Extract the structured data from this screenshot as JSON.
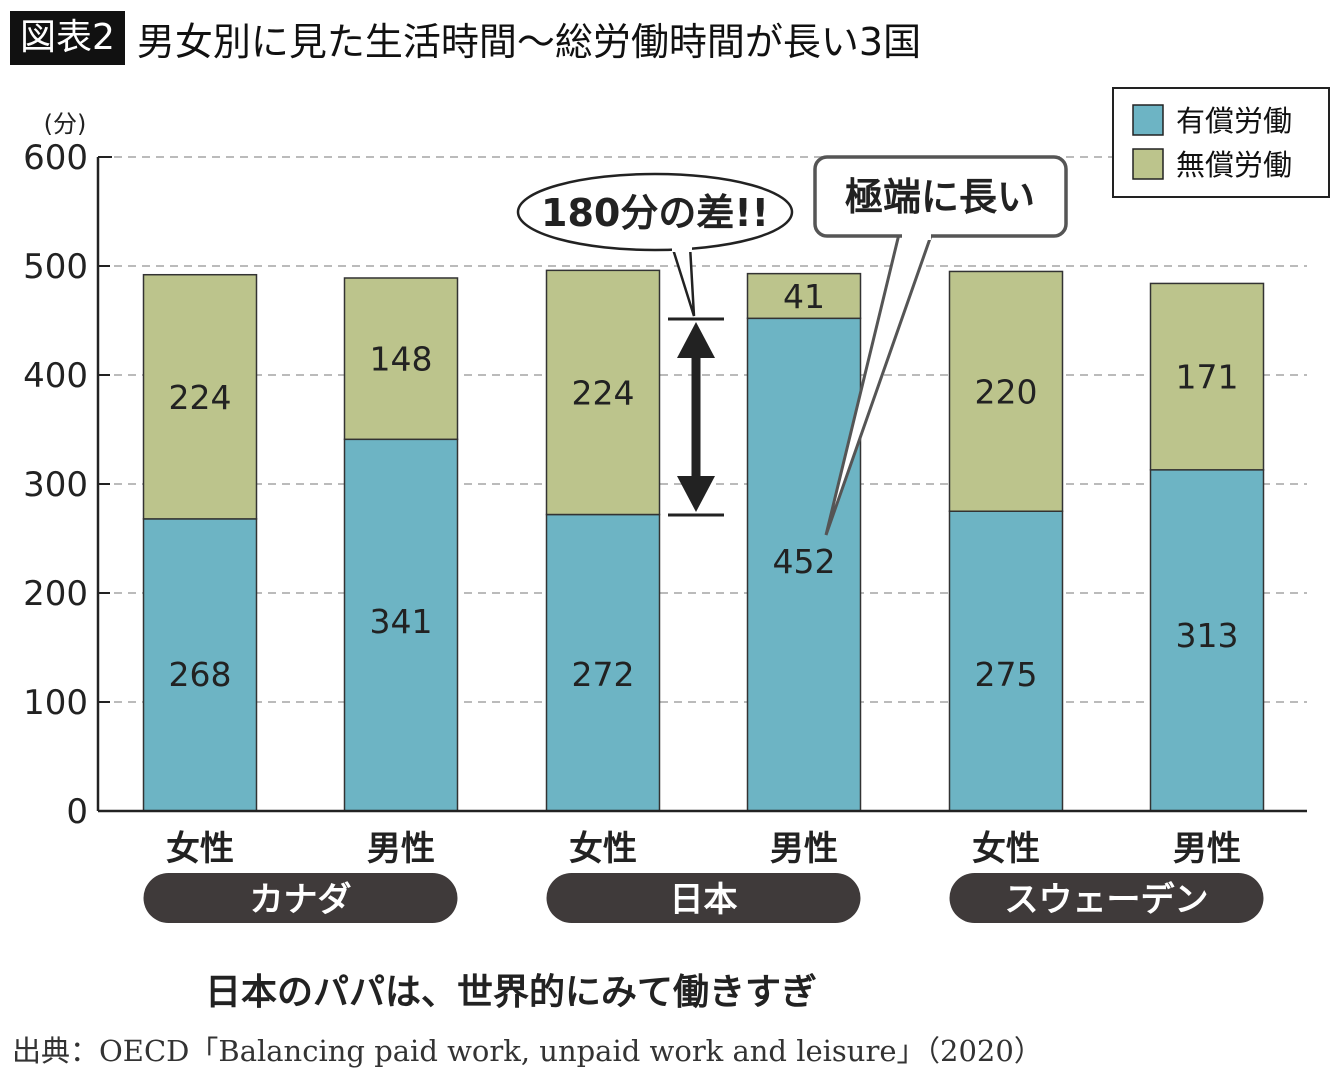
{
  "header": {
    "badge": "図表2",
    "title": "男女別に見た生活時間〜総労働時間が長い3国"
  },
  "chart_data": {
    "type": "bar",
    "stacked": true,
    "title": "男女別に見た生活時間〜総労働時間が長い3国",
    "ylabel": "(分)",
    "ylim": [
      0,
      600
    ],
    "yticks": [
      "0",
      "100",
      "200",
      "300",
      "400",
      "500",
      "600"
    ],
    "grid": true,
    "legend_position": "top-right",
    "categories": [
      "女性",
      "男性",
      "女性",
      "男性",
      "女性",
      "男性"
    ],
    "groups": [
      "カナダ",
      "日本",
      "スウェーデン"
    ],
    "series": [
      {
        "name": "有償労働",
        "color": "#6db4c4",
        "values": [
          268,
          341,
          272,
          452,
          275,
          313
        ]
      },
      {
        "name": "無償労働",
        "color": "#bcc48c",
        "values": [
          224,
          148,
          224,
          41,
          220,
          171
        ]
      }
    ],
    "annotations": [
      "180分の差!!",
      "極端に長い"
    ]
  },
  "footer": {
    "caption": "日本のパパは、世界的にみて働きすぎ",
    "source": "出典：OECD「Balancing paid work, unpaid work and leisure」（2020）"
  }
}
